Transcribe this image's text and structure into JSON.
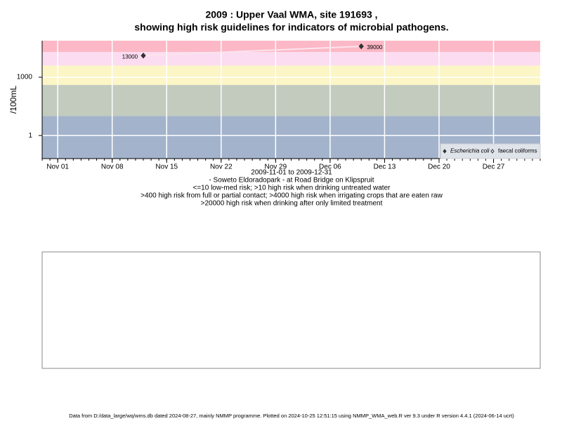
{
  "chart_data": {
    "type": "scatter",
    "title": [
      "2009 : Upper Vaal WMA, site 191693 ,",
      "showing high risk guidelines for indicators of microbial pathogens."
    ],
    "subtitle": [
      "2009-11-01 to 2009-12-31",
      "- Soweto Eldoradopark - at Road Bridge on Klipspruit",
      "<=10 low-med risk; >10 high risk when drinking untreated water",
      ">400 high risk from full or partial contact; >4000 high risk when irrigating crops that are eaten raw",
      ">20000 high risk when drinking after only limited treatment"
    ],
    "ylabel": "/100mL",
    "footer": "Data from D:/data_large/wq/wms.db dated 2024-08-27, mainly NMMP programme. Plotted on 2024-10-25 12:51:15 using NMMP_WMA_web.R ver 9.3 under R version 4.4.1 (2024-06-14 ucrt)",
    "x": [
      "2009-11-12",
      "2009-12-10"
    ],
    "series": [
      {
        "name": "Escherichia coli",
        "color": "#333333",
        "values": [
          13000,
          39000
        ]
      },
      {
        "name": "faecal coliforms",
        "color": "#333333",
        "values": [
          null,
          null
        ]
      }
    ],
    "log_scale": true,
    "ylim": [
      0.065,
      76000
    ],
    "yticks": [
      1,
      1000
    ],
    "xlim": [
      "2009-10-30",
      "2010-01-02"
    ],
    "xticks": [
      {
        "value": "2009-11-01",
        "label": "Nov 01"
      },
      {
        "value": "2009-11-08",
        "label": "Nov 08"
      },
      {
        "value": "2009-11-15",
        "label": "Nov 15"
      },
      {
        "value": "2009-11-22",
        "label": "Nov 22"
      },
      {
        "value": "2009-11-29",
        "label": "Nov 29"
      },
      {
        "value": "2009-12-06",
        "label": "Dec 06"
      },
      {
        "value": "2009-12-13",
        "label": "Dec 13"
      },
      {
        "value": "2009-12-20",
        "label": "Dec 20"
      },
      {
        "value": "2009-12-27",
        "label": "Dec 27"
      }
    ],
    "guidelines": [
      10,
      400,
      4000,
      20000
    ],
    "band_colors": [
      "#a3b3cc",
      "#c3cbbf",
      "#fcf5c6",
      "#fcdcf0",
      "#fcb8c6"
    ],
    "grid": true,
    "legend": "bottom right"
  }
}
